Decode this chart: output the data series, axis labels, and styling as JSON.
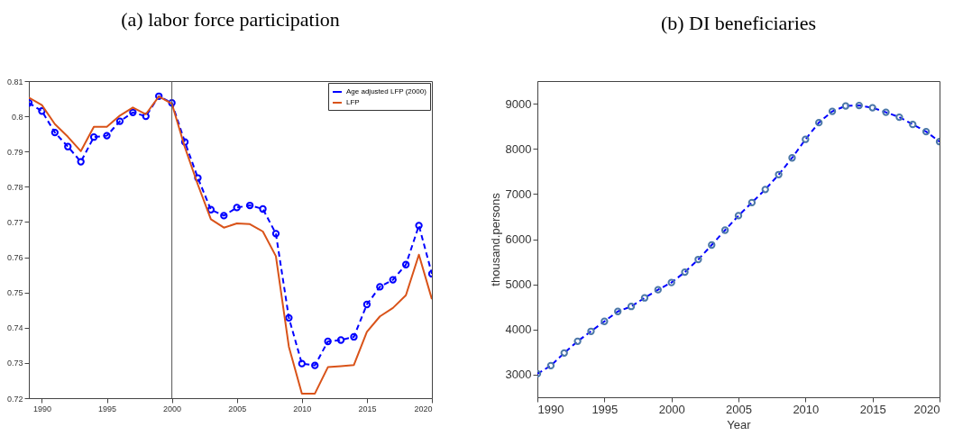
{
  "chart_data": [
    {
      "type": "line",
      "title": "(a) labor force participation",
      "x": [
        1989,
        1990,
        1991,
        1992,
        1993,
        1994,
        1995,
        1996,
        1997,
        1998,
        1999,
        2000,
        2001,
        2002,
        2003,
        2004,
        2005,
        2006,
        2007,
        2008,
        2009,
        2010,
        2011,
        2012,
        2013,
        2014,
        2015,
        2016,
        2017,
        2018,
        2019,
        2020
      ],
      "series": [
        {
          "name": "Age adjusted LFP (2000)",
          "color": "#0000ff",
          "line_style": "dashed",
          "marker": "circle",
          "values": [
            0.8038,
            0.8015,
            0.7954,
            0.7914,
            0.7871,
            0.7941,
            0.7945,
            0.7986,
            0.8011,
            0.8,
            0.8057,
            0.8038,
            0.7927,
            0.7825,
            0.7735,
            0.7718,
            0.7741,
            0.7747,
            0.7737,
            0.7667,
            0.7428,
            0.7298,
            0.7293,
            0.7361,
            0.7365,
            0.7374,
            0.7466,
            0.7516,
            0.7536,
            0.7579,
            0.769,
            0.7553
          ]
        },
        {
          "name": "LFP",
          "color": "#d95319",
          "line_style": "solid",
          "marker": "none",
          "values": [
            0.8053,
            0.8032,
            0.7978,
            0.7942,
            0.7901,
            0.797,
            0.797,
            0.8002,
            0.8025,
            0.8006,
            0.8056,
            0.8036,
            0.7912,
            0.7806,
            0.7708,
            0.7684,
            0.7696,
            0.7694,
            0.7673,
            0.7603,
            0.7346,
            0.7213,
            0.7213,
            0.7288,
            0.7291,
            0.7294,
            0.7388,
            0.7432,
            0.7456,
            0.7492,
            0.7607,
            0.7481
          ]
        }
      ],
      "xlim": [
        1989,
        2020
      ],
      "xticks": [
        1990,
        1995,
        2000,
        2005,
        2010,
        2015,
        2020
      ],
      "ylim": [
        0.72,
        0.81
      ],
      "yticks": [
        0.72,
        0.73,
        0.74,
        0.75,
        0.76,
        0.77,
        0.78,
        0.79,
        0.8,
        0.81
      ],
      "ref_lines": [
        {
          "axis": "x",
          "value": 2000,
          "color": "#555555"
        }
      ],
      "grid": false,
      "legend": "top right"
    },
    {
      "type": "line",
      "title": "(b) DI beneficiaries",
      "xlabel": "Year",
      "ylabel": "thousand.persons",
      "x": [
        1990,
        1991,
        1992,
        1993,
        1994,
        1995,
        1996,
        1997,
        1998,
        1999,
        2000,
        2001,
        2002,
        2003,
        2004,
        2005,
        2006,
        2007,
        2008,
        2009,
        2010,
        2011,
        2012,
        2013,
        2014,
        2015,
        2016,
        2017,
        2018,
        2019,
        2020
      ],
      "series": [
        {
          "color": "#0000ff",
          "line_style": "dashed",
          "marker": "circle",
          "values": [
            3020,
            3200,
            3480,
            3740,
            3960,
            4180,
            4400,
            4510,
            4700,
            4880,
            5040,
            5270,
            5550,
            5870,
            6200,
            6520,
            6810,
            7100,
            7430,
            7800,
            8210,
            8580,
            8830,
            8950,
            8960,
            8910,
            8810,
            8700,
            8540,
            8380,
            8160
          ]
        }
      ],
      "xlim": [
        1990,
        2020
      ],
      "xticks": [
        1990,
        1995,
        2000,
        2005,
        2010,
        2015,
        2020
      ],
      "ylim": [
        2500,
        9500
      ],
      "yticks": [
        3000,
        4000,
        5000,
        6000,
        7000,
        8000,
        9000
      ],
      "grid": false
    }
  ]
}
